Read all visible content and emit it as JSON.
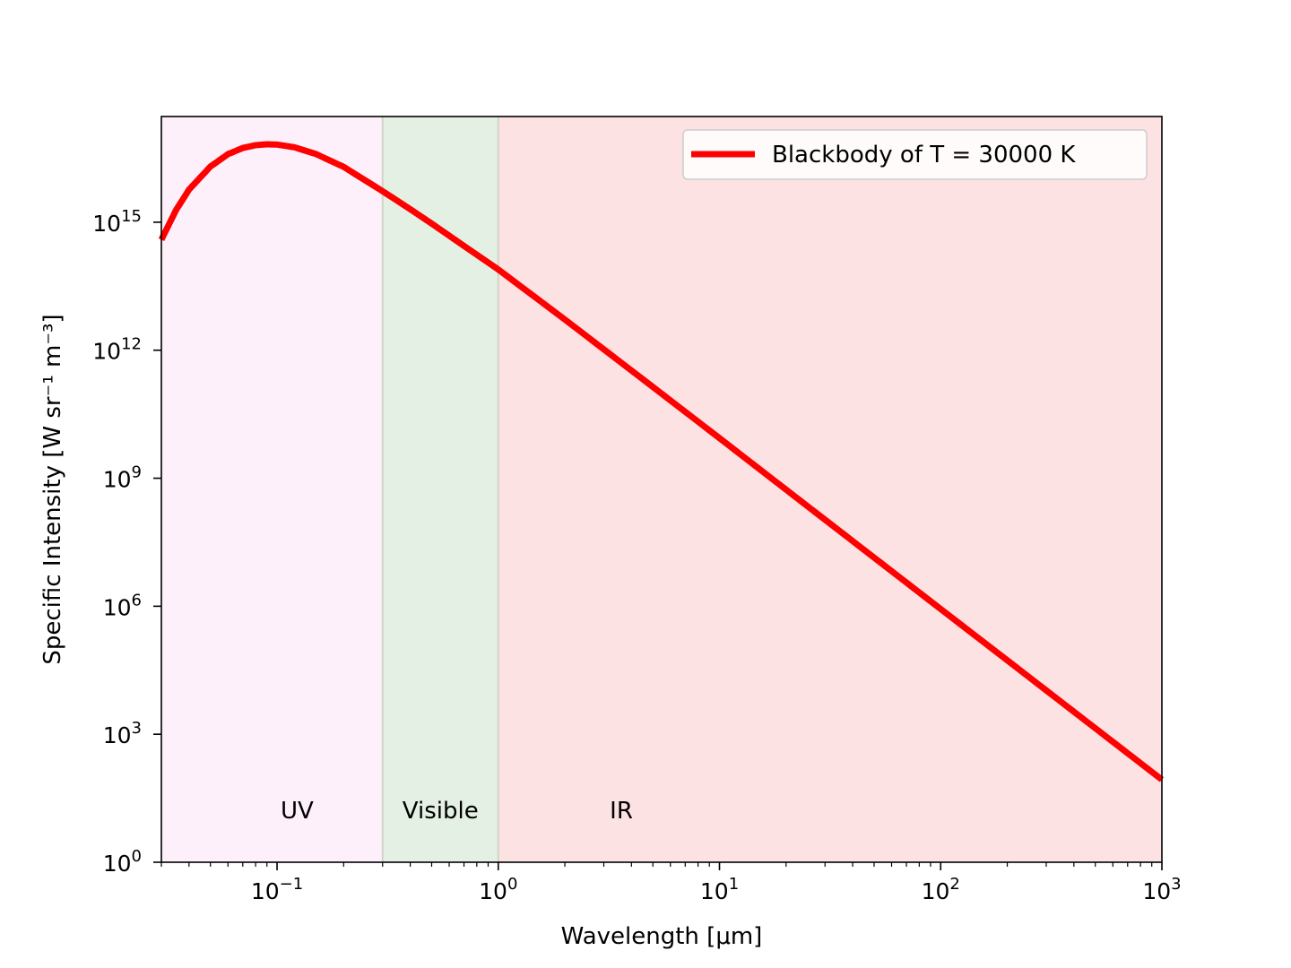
{
  "chart_data": {
    "type": "line",
    "title": "",
    "xlabel": "Wavelength [μm]",
    "ylabel": "Specific Intensity [W sr⁻¹ m⁻³]",
    "x_scale": "log",
    "y_scale": "log",
    "xlim": [
      0.03,
      1000
    ],
    "ylim": [
      1,
      3e+17
    ],
    "grid": false,
    "legend_position": "top-right",
    "x_ticks": [
      {
        "value": 0.1,
        "base": "10",
        "exp": "−1"
      },
      {
        "value": 1,
        "base": "10",
        "exp": "0"
      },
      {
        "value": 10,
        "base": "10",
        "exp": "1"
      },
      {
        "value": 100,
        "base": "10",
        "exp": "2"
      },
      {
        "value": 1000,
        "base": "10",
        "exp": "3"
      }
    ],
    "y_ticks": [
      {
        "value": 1,
        "base": "10",
        "exp": "0"
      },
      {
        "value": 1000,
        "base": "10",
        "exp": "3"
      },
      {
        "value": 1000000,
        "base": "10",
        "exp": "6"
      },
      {
        "value": 1000000000,
        "base": "10",
        "exp": "9"
      },
      {
        "value": 1000000000000,
        "base": "10",
        "exp": "12"
      },
      {
        "value": 1000000000000000,
        "base": "10",
        "exp": "15"
      }
    ],
    "regions": [
      {
        "label": "UV",
        "x_start": 0.03,
        "x_end": 0.3,
        "color": "#fdf0fb"
      },
      {
        "label": "Visible",
        "x_start": 0.3,
        "x_end": 1,
        "color": "#e5f0e4"
      },
      {
        "label": "IR",
        "x_start": 1,
        "x_end": 1000,
        "color": "#fde2e4"
      }
    ],
    "region_boundary_color": "#cfd5c8",
    "series": [
      {
        "name": "Blackbody of T = 30000 K",
        "color": "#ff0000",
        "x": [
          0.03,
          0.035,
          0.04,
          0.05,
          0.06,
          0.07,
          0.08,
          0.09,
          0.1,
          0.12,
          0.15,
          0.2,
          0.3,
          0.4,
          0.5,
          0.7,
          1,
          2,
          5,
          10,
          20,
          50,
          100,
          200,
          500,
          1000
        ],
        "y": [
          390000000000000.0,
          1950000000000000.0,
          5800000000000000.0,
          2.02e+16,
          3.93e+16,
          5.49e+16,
          6.39e+16,
          6.71e+16,
          6.6e+16,
          5.69e+16,
          3.96e+16,
          1.98e+16,
          5340000000000000.0,
          2020000000000000.0,
          930000000000000.0,
          278000000000000.0,
          78000000000000.0,
          5240000000000.0,
          138000000000.0,
          8700000000.0,
          540000000.0,
          13800000.0,
          860000.0,
          54000.0,
          1380.0,
          86
        ]
      }
    ]
  }
}
